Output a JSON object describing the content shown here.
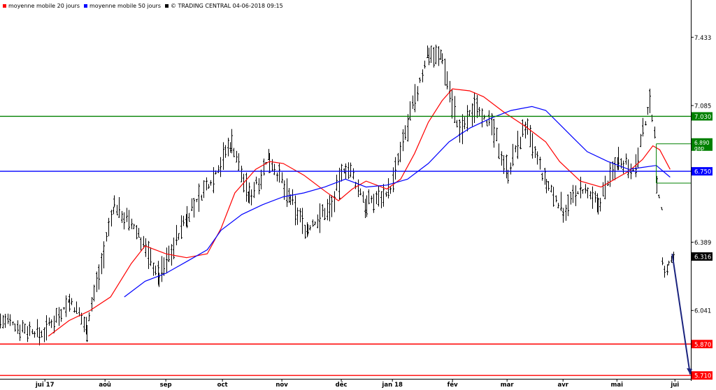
{
  "legend": {
    "ma20_label": "moyenne mobile 20 jours",
    "ma50_label": "moyenne mobile 50 jours",
    "source_label": "© TRADING CENTRAL 04-06-2018 09:15"
  },
  "chart_data": {
    "type": "ohlc",
    "title": "",
    "xlabel": "",
    "ylabel": "",
    "ylim": [
      5.7,
      7.58
    ],
    "grid": false,
    "x_tick_labels": [
      "jui 17",
      "aoû",
      "sep",
      "oct",
      "nov",
      "déc",
      "jan 18",
      "fév",
      "mar",
      "avr",
      "mai",
      "jui"
    ],
    "y_tick_labels": [
      "7.433",
      "7.085",
      "6.389",
      "6.041"
    ],
    "y_ticks": [
      7.433,
      7.085,
      6.389,
      6.041
    ],
    "price_levels": [
      {
        "value": 7.03,
        "label": "7.030",
        "color": "#008000"
      },
      {
        "value": 6.75,
        "label": "6.750",
        "color": "#0000ff"
      },
      {
        "value": 5.87,
        "label": "5.870",
        "color": "#ff0000"
      },
      {
        "value": 5.71,
        "label": "5.710",
        "color": "#ff0000"
      }
    ],
    "gap_annotation": {
      "value": "6.890",
      "label": "gap"
    },
    "last_price": {
      "value": 6.316,
      "label": "6.316"
    },
    "series": [
      {
        "name": "moyenne mobile 20 jours",
        "color": "#ff0000",
        "points": [
          [
            0.07,
            5.91
          ],
          [
            0.1,
            5.99
          ],
          [
            0.13,
            6.04
          ],
          [
            0.16,
            6.11
          ],
          [
            0.19,
            6.28
          ],
          [
            0.21,
            6.37
          ],
          [
            0.24,
            6.33
          ],
          [
            0.27,
            6.31
          ],
          [
            0.3,
            6.33
          ],
          [
            0.32,
            6.46
          ],
          [
            0.34,
            6.64
          ],
          [
            0.37,
            6.76
          ],
          [
            0.39,
            6.8
          ],
          [
            0.41,
            6.79
          ],
          [
            0.44,
            6.73
          ],
          [
            0.47,
            6.65
          ],
          [
            0.49,
            6.6
          ],
          [
            0.51,
            6.66
          ],
          [
            0.53,
            6.7
          ],
          [
            0.56,
            6.66
          ],
          [
            0.58,
            6.71
          ],
          [
            0.6,
            6.84
          ],
          [
            0.62,
            7.0
          ],
          [
            0.64,
            7.11
          ],
          [
            0.655,
            7.17
          ],
          [
            0.68,
            7.16
          ],
          [
            0.7,
            7.13
          ],
          [
            0.73,
            7.05
          ],
          [
            0.76,
            6.98
          ],
          [
            0.79,
            6.9
          ],
          [
            0.81,
            6.8
          ],
          [
            0.84,
            6.7
          ],
          [
            0.87,
            6.67
          ],
          [
            0.89,
            6.71
          ],
          [
            0.91,
            6.75
          ],
          [
            0.93,
            6.81
          ],
          [
            0.945,
            6.88
          ],
          [
            0.955,
            6.86
          ],
          [
            0.97,
            6.76
          ]
        ]
      },
      {
        "name": "moyenne mobile 50 jours",
        "color": "#0000ff",
        "points": [
          [
            0.18,
            6.11
          ],
          [
            0.21,
            6.19
          ],
          [
            0.24,
            6.23
          ],
          [
            0.27,
            6.29
          ],
          [
            0.3,
            6.35
          ],
          [
            0.32,
            6.45
          ],
          [
            0.35,
            6.53
          ],
          [
            0.38,
            6.58
          ],
          [
            0.41,
            6.62
          ],
          [
            0.44,
            6.64
          ],
          [
            0.47,
            6.67
          ],
          [
            0.5,
            6.71
          ],
          [
            0.53,
            6.67
          ],
          [
            0.56,
            6.68
          ],
          [
            0.59,
            6.71
          ],
          [
            0.62,
            6.79
          ],
          [
            0.65,
            6.9
          ],
          [
            0.68,
            6.97
          ],
          [
            0.71,
            7.02
          ],
          [
            0.74,
            7.06
          ],
          [
            0.77,
            7.08
          ],
          [
            0.79,
            7.06
          ],
          [
            0.81,
            6.99
          ],
          [
            0.83,
            6.92
          ],
          [
            0.85,
            6.85
          ],
          [
            0.88,
            6.8
          ],
          [
            0.91,
            6.76
          ],
          [
            0.93,
            6.77
          ],
          [
            0.95,
            6.78
          ],
          [
            0.97,
            6.72
          ]
        ]
      }
    ],
    "ohlc_segments": [
      {
        "t0": 0.0,
        "t1": 0.06,
        "start": 5.99,
        "end": 5.92,
        "amp": 0.12
      },
      {
        "t0": 0.06,
        "t1": 0.1,
        "start": 5.92,
        "end": 6.09,
        "amp": 0.12
      },
      {
        "t0": 0.1,
        "t1": 0.125,
        "start": 6.09,
        "end": 5.96,
        "amp": 0.11
      },
      {
        "t0": 0.125,
        "t1": 0.165,
        "start": 5.96,
        "end": 6.58,
        "amp": 0.15
      },
      {
        "t0": 0.165,
        "t1": 0.2,
        "start": 6.58,
        "end": 6.43,
        "amp": 0.12
      },
      {
        "t0": 0.2,
        "t1": 0.23,
        "start": 6.43,
        "end": 6.21,
        "amp": 0.13
      },
      {
        "t0": 0.23,
        "t1": 0.27,
        "start": 6.21,
        "end": 6.52,
        "amp": 0.14
      },
      {
        "t0": 0.27,
        "t1": 0.305,
        "start": 6.52,
        "end": 6.7,
        "amp": 0.15
      },
      {
        "t0": 0.305,
        "t1": 0.335,
        "start": 6.7,
        "end": 6.9,
        "amp": 0.15
      },
      {
        "t0": 0.335,
        "t1": 0.36,
        "start": 6.9,
        "end": 6.62,
        "amp": 0.14
      },
      {
        "t0": 0.36,
        "t1": 0.39,
        "start": 6.62,
        "end": 6.82,
        "amp": 0.14
      },
      {
        "t0": 0.39,
        "t1": 0.42,
        "start": 6.82,
        "end": 6.6,
        "amp": 0.13
      },
      {
        "t0": 0.42,
        "t1": 0.445,
        "start": 6.6,
        "end": 6.45,
        "amp": 0.14
      },
      {
        "t0": 0.445,
        "t1": 0.48,
        "start": 6.45,
        "end": 6.58,
        "amp": 0.14
      },
      {
        "t0": 0.48,
        "t1": 0.5,
        "start": 6.58,
        "end": 6.78,
        "amp": 0.14
      },
      {
        "t0": 0.5,
        "t1": 0.53,
        "start": 6.78,
        "end": 6.58,
        "amp": 0.14
      },
      {
        "t0": 0.53,
        "t1": 0.565,
        "start": 6.58,
        "end": 6.66,
        "amp": 0.12
      },
      {
        "t0": 0.565,
        "t1": 0.59,
        "start": 6.66,
        "end": 6.98,
        "amp": 0.14
      },
      {
        "t0": 0.59,
        "t1": 0.62,
        "start": 6.98,
        "end": 7.36,
        "amp": 0.14
      },
      {
        "t0": 0.62,
        "t1": 0.64,
        "start": 7.36,
        "end": 7.33,
        "amp": 0.12
      },
      {
        "t0": 0.64,
        "t1": 0.665,
        "start": 7.33,
        "end": 6.94,
        "amp": 0.16
      },
      {
        "t0": 0.665,
        "t1": 0.69,
        "start": 6.94,
        "end": 7.1,
        "amp": 0.15
      },
      {
        "t0": 0.69,
        "t1": 0.715,
        "start": 7.1,
        "end": 6.94,
        "amp": 0.14
      },
      {
        "t0": 0.715,
        "t1": 0.735,
        "start": 6.94,
        "end": 6.75,
        "amp": 0.13
      },
      {
        "t0": 0.735,
        "t1": 0.76,
        "start": 6.75,
        "end": 6.98,
        "amp": 0.14
      },
      {
        "t0": 0.76,
        "t1": 0.79,
        "start": 6.98,
        "end": 6.68,
        "amp": 0.13
      },
      {
        "t0": 0.79,
        "t1": 0.815,
        "start": 6.68,
        "end": 6.55,
        "amp": 0.13
      },
      {
        "t0": 0.815,
        "t1": 0.84,
        "start": 6.55,
        "end": 6.66,
        "amp": 0.12
      },
      {
        "t0": 0.84,
        "t1": 0.865,
        "start": 6.66,
        "end": 6.58,
        "amp": 0.12
      },
      {
        "t0": 0.865,
        "t1": 0.895,
        "start": 6.58,
        "end": 6.82,
        "amp": 0.13
      },
      {
        "t0": 0.895,
        "t1": 0.92,
        "start": 6.82,
        "end": 6.76,
        "amp": 0.13
      },
      {
        "t0": 0.92,
        "t1": 0.94,
        "start": 6.76,
        "end": 7.1,
        "amp": 0.14
      },
      {
        "t0": 0.94,
        "t1": 0.95,
        "start": 7.1,
        "end": 6.92,
        "amp": 0.12
      },
      {
        "t0": 0.95,
        "t1": 0.958,
        "start": 6.68,
        "end": 6.55,
        "amp": 0.08
      },
      {
        "t0": 0.958,
        "t1": 0.968,
        "start": 6.28,
        "end": 6.22,
        "amp": 0.09
      },
      {
        "t0": 0.968,
        "t1": 0.976,
        "start": 6.28,
        "end": 6.32,
        "amp": 0.05
      }
    ]
  }
}
